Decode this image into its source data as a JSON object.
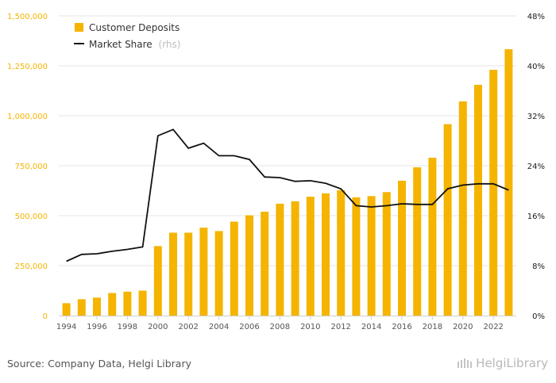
{
  "chart_data": {
    "type": "bar",
    "categories": [
      "1994",
      "1995",
      "1996",
      "1997",
      "1998",
      "1999",
      "2000",
      "2001",
      "2002",
      "2003",
      "2004",
      "2005",
      "2006",
      "2007",
      "2008",
      "2009",
      "2010",
      "2011",
      "2012",
      "2013",
      "2014",
      "2015",
      "2016",
      "2017",
      "2018",
      "2019",
      "2020",
      "2021",
      "2022",
      "2023"
    ],
    "x_tick_labels": [
      "1994",
      "1996",
      "1998",
      "2000",
      "2002",
      "2004",
      "2006",
      "2008",
      "2010",
      "2012",
      "2014",
      "2016",
      "2018",
      "2020",
      "2022"
    ],
    "series": [
      {
        "name": "Customer Deposits",
        "type": "bar",
        "axis": "left",
        "color": "#f4b400",
        "values": [
          62000,
          82000,
          90000,
          113000,
          120000,
          125000,
          348000,
          415000,
          415000,
          440000,
          423000,
          470000,
          502000,
          520000,
          560000,
          572000,
          595000,
          612000,
          628000,
          592000,
          598000,
          618000,
          675000,
          742000,
          790000,
          958000,
          1072000,
          1155000,
          1230000,
          1333000
        ]
      },
      {
        "name": "Market Share",
        "legend_suffix": "(rhs)",
        "type": "line",
        "axis": "right",
        "color": "#111111",
        "values": [
          8.7,
          9.8,
          9.9,
          10.3,
          10.6,
          11.0,
          28.8,
          29.8,
          26.8,
          27.6,
          25.6,
          25.6,
          25.0,
          22.2,
          22.1,
          21.5,
          21.6,
          21.2,
          20.3,
          17.6,
          17.4,
          17.6,
          17.9,
          17.8,
          17.8,
          20.3,
          20.9,
          21.1,
          21.1,
          20.1
        ]
      }
    ],
    "y_left": {
      "ylim": [
        0,
        1500000
      ],
      "ticks": [
        "0",
        "250,000",
        "500,000",
        "750,000",
        "1,000,000",
        "1,250,000",
        "1,500,000"
      ]
    },
    "y_right": {
      "ylim": [
        0,
        48
      ],
      "ticks": [
        "0%",
        "8%",
        "16%",
        "24%",
        "32%",
        "40%",
        "48%"
      ]
    },
    "grid": true,
    "legend_position": "top-left"
  },
  "footer": {
    "source": "Source: Company Data, Helgi Library",
    "brand": "HelgiLibrary"
  }
}
